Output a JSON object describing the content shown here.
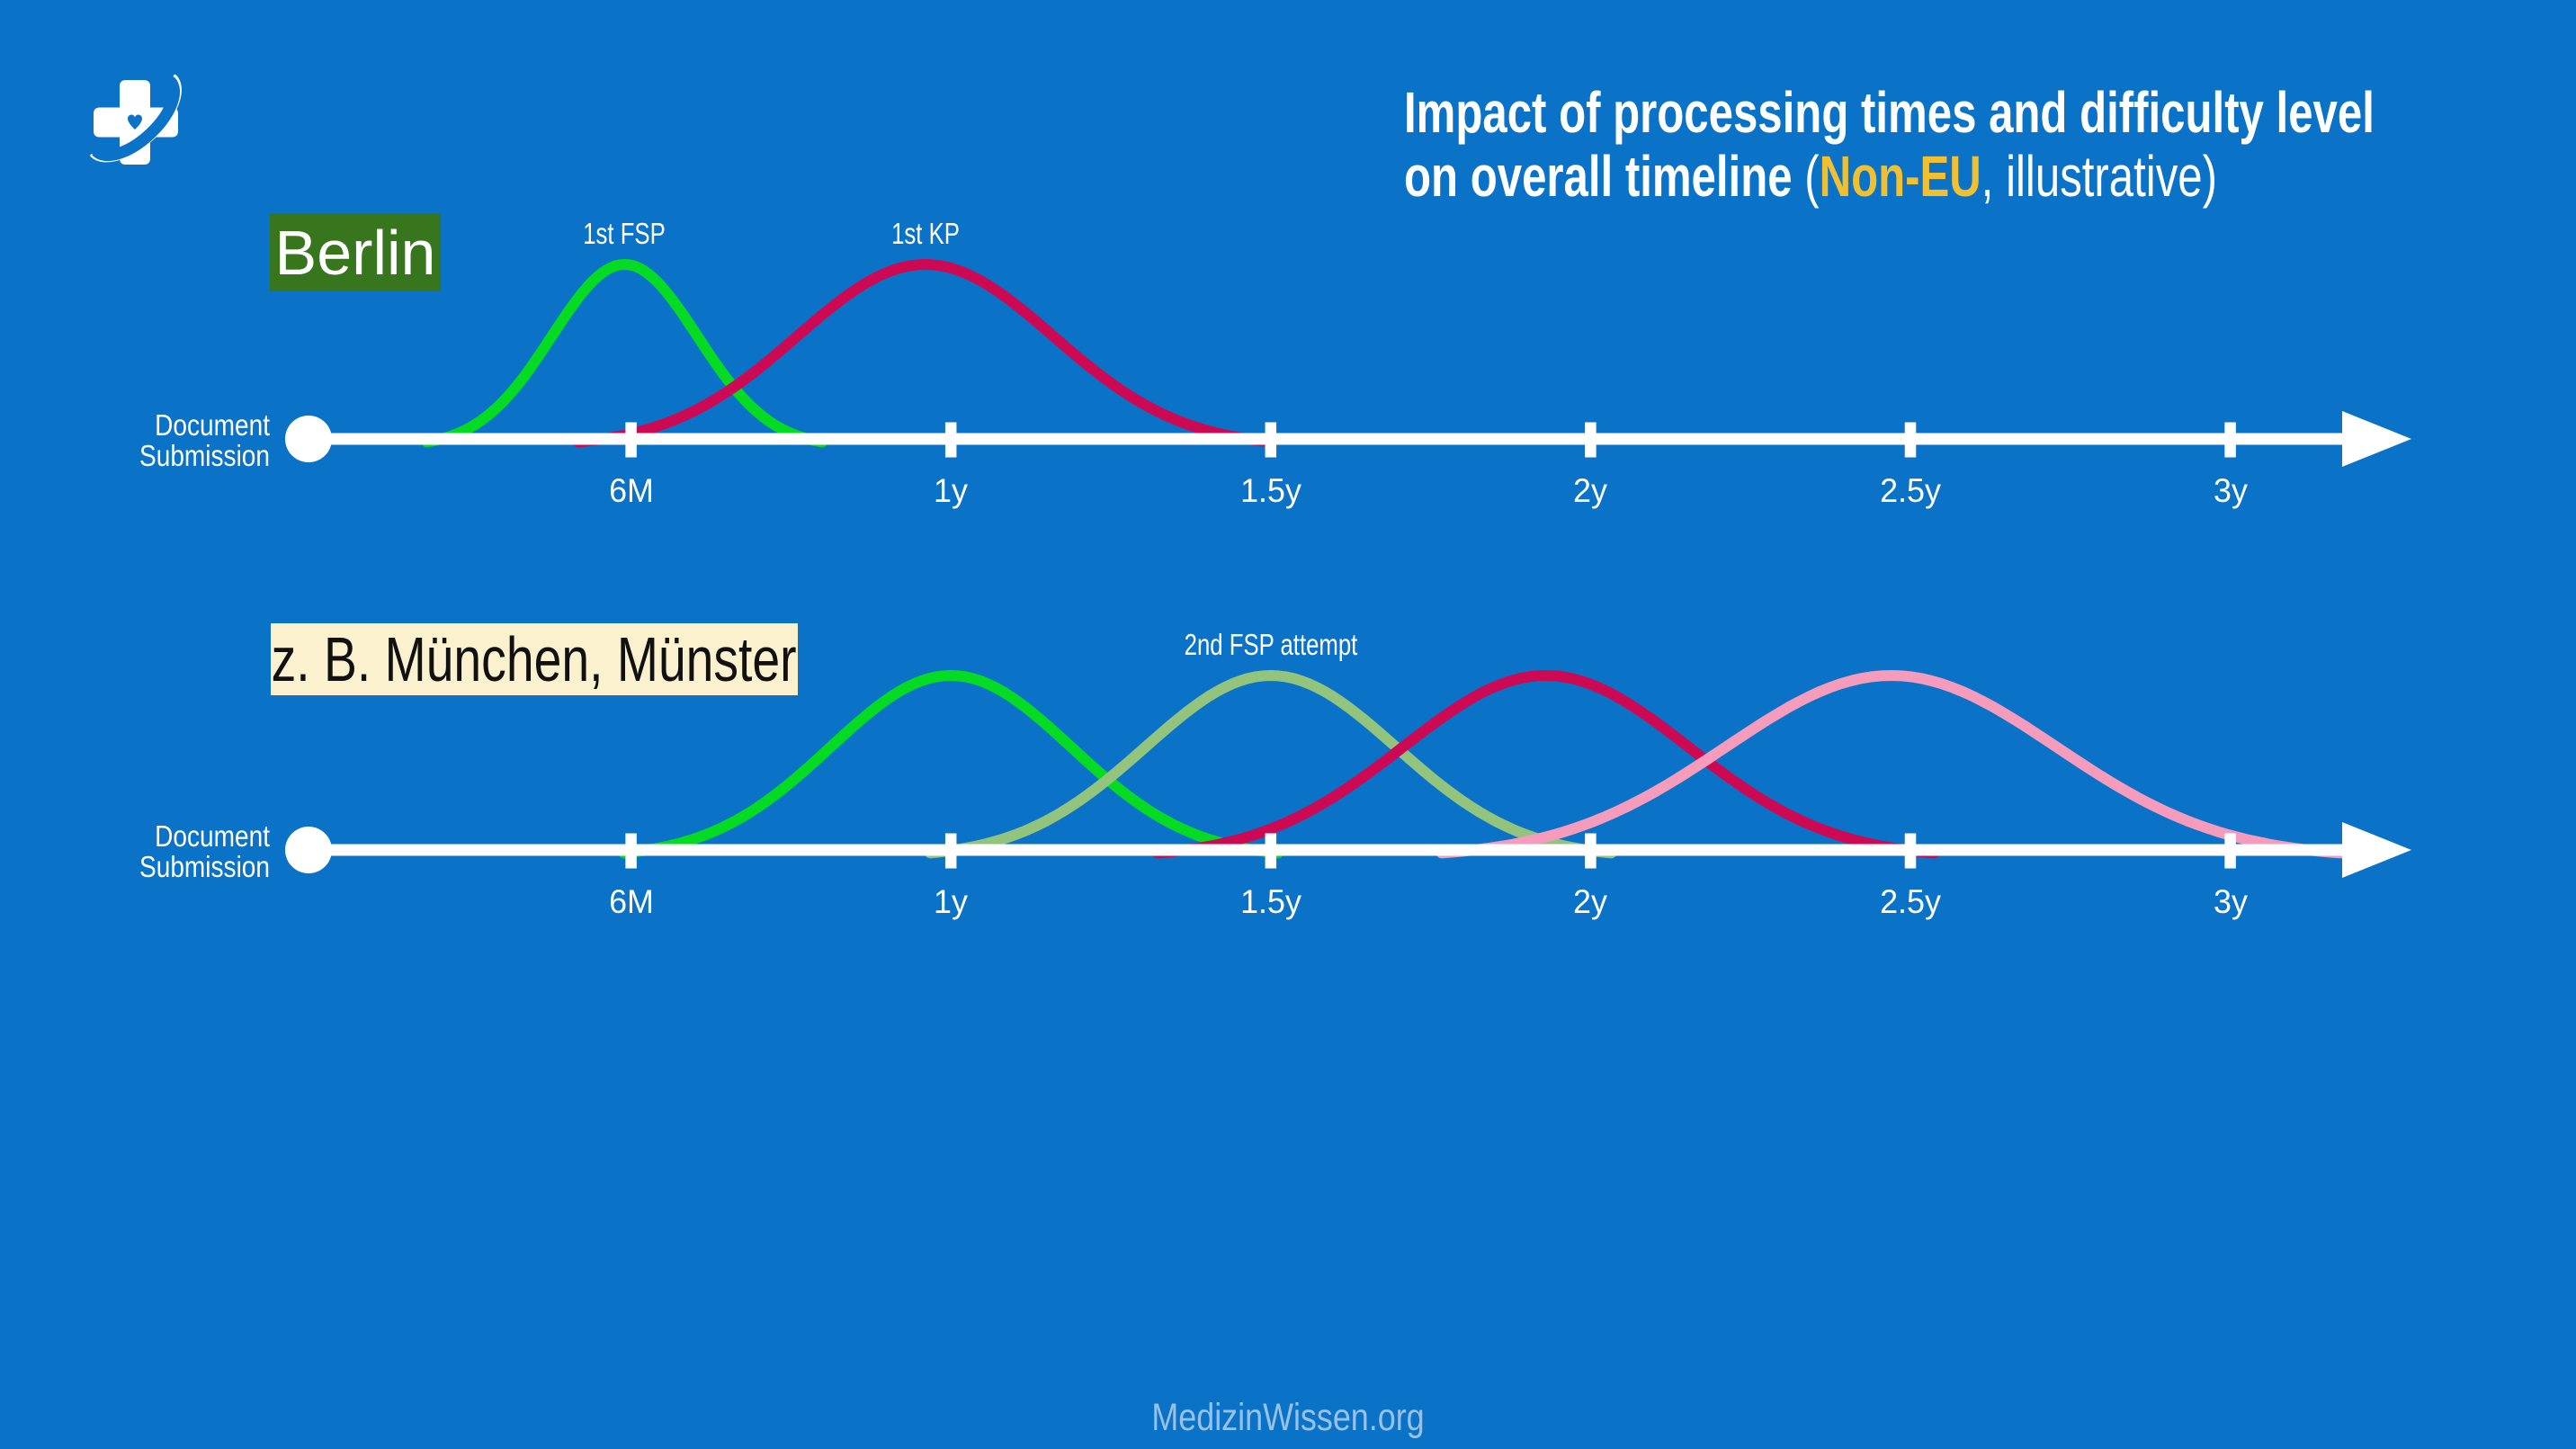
{
  "page": {
    "background_color": "#0a73c8",
    "accent_gold": "#f0c032"
  },
  "logo": {
    "icon": "medical-cross-heart-swoosh-icon"
  },
  "title": {
    "line1": "Impact of processing times and difficulty level",
    "line2_bold_prefix": "on overall timeline ",
    "line2_paren": "(",
    "line2_highlight": "Non-EU",
    "line2_suffix": ", illustrative)",
    "highlight_color": "#f0c032",
    "text_color": "#ffffff"
  },
  "footer": {
    "text": "MedizinWissen.org",
    "color": "#99c1e6"
  },
  "chart_data": {
    "type": "line",
    "title": "Impact of processing times and difficulty level on overall timeline (Non-EU, illustrative)",
    "x_unit": "years",
    "x_ticks": [
      0.5,
      1,
      1.5,
      2,
      2.5,
      3
    ],
    "x_tick_labels": [
      "6M",
      "1y",
      "1.5y",
      "2y",
      "2.5y",
      "3y"
    ],
    "xlim": [
      0,
      3.3
    ],
    "axis_start_label": "Document Submission",
    "axis_color": "#ffffff",
    "timelines": [
      {
        "name": "Berlin",
        "label": "Berlin",
        "label_bg": "#38761d",
        "label_color": "#ffffff",
        "curves": [
          {
            "label": "1st FSP",
            "color": "#06db23",
            "peak_year": 0.49,
            "half_width_years": 0.29
          },
          {
            "label": "1st KP",
            "color": "#ce0953",
            "peak_year": 0.96,
            "half_width_years": 0.51
          }
        ]
      },
      {
        "name": "z. B. München, Münster",
        "label": "z. B. München, Münster",
        "label_bg": "#fcf1ce",
        "label_color": "#111111",
        "curves": [
          {
            "label": "",
            "color": "#06db23",
            "peak_year": 1.0,
            "half_width_years": 0.48
          },
          {
            "label": "2nd FSP attempt",
            "color": "#93c47d",
            "peak_year": 1.5,
            "half_width_years": 0.5
          },
          {
            "label": "",
            "color": "#ce0953",
            "peak_year": 1.93,
            "half_width_years": 0.57
          },
          {
            "label": "",
            "color": "#f59cbc",
            "peak_year": 2.47,
            "half_width_years": 0.66
          }
        ]
      }
    ]
  }
}
